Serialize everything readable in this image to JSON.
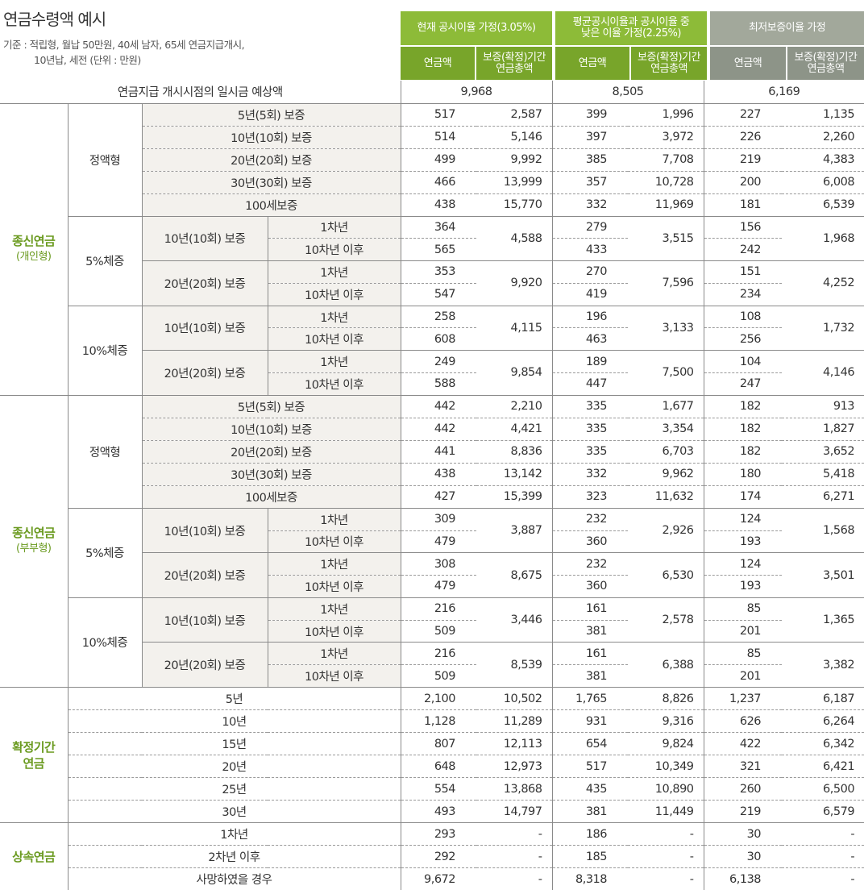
{
  "page": {
    "title": "연금수령액 예시",
    "basis_line1": "기준 : 적립형, 월납 50만원, 40세 남자, 65세 연금지급개시,",
    "basis_line2": "10년납, 세전 (단위 : 만원)"
  },
  "header": {
    "scenario1": "현재 공시이율 가정(3.05%)",
    "scenario2_l1": "평균공시이율과 공시이율 중",
    "scenario2_l2": "낮은 이율 가정(2.25%)",
    "scenario3": "최저보증이율 가정",
    "col_annual": "연금액",
    "col_total_l1": "보증(확정)기간",
    "col_total_l2": "연금총액"
  },
  "lump": {
    "label": "연금지급 개시시점의 일시금 예상액",
    "values": [
      "9,968",
      "8,505",
      "6,169"
    ]
  },
  "labels": {
    "whole_individual": "종신연금",
    "whole_individual_sub": "(개인형)",
    "whole_couple": "종신연금",
    "whole_couple_sub": "(부부형)",
    "fixed": "확정기간",
    "fixed2": "연금",
    "inherit": "상속연금",
    "flat": "정액형",
    "inc5": "5%체증",
    "inc10": "10%체증",
    "g10": "10년(10회) 보증",
    "g20": "20년(20회) 보증",
    "y1": "1차년",
    "y10": "10차년 이후"
  },
  "individual": {
    "flat": [
      {
        "label": "5년(5회) 보증",
        "v": [
          "517",
          "2,587",
          "399",
          "1,996",
          "227",
          "1,135"
        ]
      },
      {
        "label": "10년(10회) 보증",
        "v": [
          "514",
          "5,146",
          "397",
          "3,972",
          "226",
          "2,260"
        ]
      },
      {
        "label": "20년(20회) 보증",
        "v": [
          "499",
          "9,992",
          "385",
          "7,708",
          "219",
          "4,383"
        ]
      },
      {
        "label": "30년(30회) 보증",
        "v": [
          "466",
          "13,999",
          "357",
          "10,728",
          "200",
          "6,008"
        ]
      },
      {
        "label": "100세보증",
        "v": [
          "438",
          "15,770",
          "332",
          "11,969",
          "181",
          "6,539"
        ]
      }
    ],
    "inc5": [
      {
        "a1": [
          "364",
          "279",
          "156"
        ],
        "a10": [
          "565",
          "433",
          "242"
        ],
        "t": [
          "4,588",
          "3,515",
          "1,968"
        ]
      },
      {
        "a1": [
          "353",
          "270",
          "151"
        ],
        "a10": [
          "547",
          "419",
          "234"
        ],
        "t": [
          "9,920",
          "7,596",
          "4,252"
        ]
      }
    ],
    "inc10": [
      {
        "a1": [
          "258",
          "196",
          "108"
        ],
        "a10": [
          "608",
          "463",
          "256"
        ],
        "t": [
          "4,115",
          "3,133",
          "1,732"
        ]
      },
      {
        "a1": [
          "249",
          "189",
          "104"
        ],
        "a10": [
          "588",
          "447",
          "247"
        ],
        "t": [
          "9,854",
          "7,500",
          "4,146"
        ]
      }
    ]
  },
  "couple": {
    "flat": [
      {
        "label": "5년(5회) 보증",
        "v": [
          "442",
          "2,210",
          "335",
          "1,677",
          "182",
          "913"
        ]
      },
      {
        "label": "10년(10회) 보증",
        "v": [
          "442",
          "4,421",
          "335",
          "3,354",
          "182",
          "1,827"
        ]
      },
      {
        "label": "20년(20회) 보증",
        "v": [
          "441",
          "8,836",
          "335",
          "6,703",
          "182",
          "3,652"
        ]
      },
      {
        "label": "30년(30회) 보증",
        "v": [
          "438",
          "13,142",
          "332",
          "9,962",
          "180",
          "5,418"
        ]
      },
      {
        "label": "100세보증",
        "v": [
          "427",
          "15,399",
          "323",
          "11,632",
          "174",
          "6,271"
        ]
      }
    ],
    "inc5": [
      {
        "a1": [
          "309",
          "232",
          "124"
        ],
        "a10": [
          "479",
          "360",
          "193"
        ],
        "t": [
          "3,887",
          "2,926",
          "1,568"
        ]
      },
      {
        "a1": [
          "308",
          "232",
          "124"
        ],
        "a10": [
          "479",
          "360",
          "193"
        ],
        "t": [
          "8,675",
          "6,530",
          "3,501"
        ]
      }
    ],
    "inc10": [
      {
        "a1": [
          "216",
          "161",
          "85"
        ],
        "a10": [
          "509",
          "381",
          "201"
        ],
        "t": [
          "3,446",
          "2,578",
          "1,365"
        ]
      },
      {
        "a1": [
          "216",
          "161",
          "85"
        ],
        "a10": [
          "509",
          "381",
          "201"
        ],
        "t": [
          "8,539",
          "6,388",
          "3,382"
        ]
      }
    ]
  },
  "fixed_rows": [
    {
      "label": "5년",
      "v": [
        "2,100",
        "10,502",
        "1,765",
        "8,826",
        "1,237",
        "6,187"
      ]
    },
    {
      "label": "10년",
      "v": [
        "1,128",
        "11,289",
        "931",
        "9,316",
        "626",
        "6,264"
      ]
    },
    {
      "label": "15년",
      "v": [
        "807",
        "12,113",
        "654",
        "9,824",
        "422",
        "6,342"
      ]
    },
    {
      "label": "20년",
      "v": [
        "648",
        "12,973",
        "517",
        "10,349",
        "321",
        "6,421"
      ]
    },
    {
      "label": "25년",
      "v": [
        "554",
        "13,868",
        "435",
        "10,890",
        "260",
        "6,500"
      ]
    },
    {
      "label": "30년",
      "v": [
        "493",
        "14,797",
        "381",
        "11,449",
        "219",
        "6,579"
      ]
    }
  ],
  "inherit_rows": [
    {
      "label": "1차년",
      "v": [
        "293",
        "-",
        "186",
        "-",
        "30",
        "-"
      ]
    },
    {
      "label": "2차년 이후",
      "v": [
        "292",
        "-",
        "185",
        "-",
        "30",
        "-"
      ]
    },
    {
      "label": "사망하였을 경우",
      "v": [
        "9,672",
        "-",
        "8,318",
        "-",
        "6,138",
        "-"
      ]
    }
  ],
  "colors": {
    "green": "#8dbb38",
    "green_dark": "#78a52a",
    "gray": "#a2a89b",
    "label_green": "#6a9a1f"
  }
}
